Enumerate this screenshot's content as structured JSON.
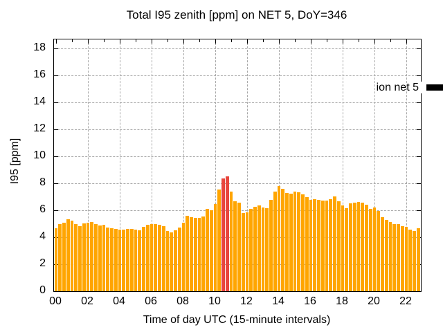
{
  "chart_data": {
    "type": "bar",
    "title": "Total I95 zenith [ppm] on NET 5, DoY=346",
    "xlabel": "Time of day UTC (15-minute intervals)",
    "ylabel": "I95 [ppm]",
    "legend": {
      "label": "ion net 5",
      "swatch_color": "#000000"
    },
    "grid": true,
    "x_start": "00:00",
    "x_step_minutes": 15,
    "xlim_hours": [
      -0.13,
      22.9
    ],
    "ylim": [
      0,
      18.67
    ],
    "yticks": [
      0,
      2,
      4,
      6,
      8,
      10,
      12,
      14,
      16,
      18
    ],
    "xtick_hours": [
      0,
      2,
      4,
      6,
      8,
      10,
      12,
      14,
      16,
      18,
      20,
      22
    ],
    "xtick_labels": [
      "00",
      "02",
      "04",
      "06",
      "08",
      "10",
      "12",
      "14",
      "16",
      "18",
      "20",
      "22"
    ],
    "bar_color": "#ffa500",
    "highlight": {
      "indices": [
        42,
        43
      ],
      "color": "#e8463d"
    },
    "values": [
      4.65,
      4.95,
      5.1,
      5.35,
      5.25,
      4.95,
      4.8,
      5.05,
      5.1,
      5.15,
      4.95,
      4.85,
      4.9,
      4.7,
      4.65,
      4.6,
      4.55,
      4.55,
      4.6,
      4.6,
      4.55,
      4.5,
      4.75,
      4.9,
      4.95,
      4.95,
      4.9,
      4.8,
      4.45,
      4.35,
      4.5,
      4.7,
      5.1,
      5.6,
      5.5,
      5.45,
      5.45,
      5.55,
      6.1,
      6.0,
      6.45,
      7.55,
      8.35,
      8.5,
      7.4,
      6.65,
      6.55,
      5.8,
      5.85,
      6.1,
      6.25,
      6.35,
      6.2,
      6.15,
      6.75,
      7.4,
      7.8,
      7.6,
      7.3,
      7.25,
      7.4,
      7.35,
      7.2,
      6.95,
      6.75,
      6.8,
      6.75,
      6.7,
      6.7,
      6.8,
      7.05,
      6.65,
      6.35,
      6.15,
      6.5,
      6.55,
      6.6,
      6.55,
      6.4,
      6.1,
      6.2,
      5.95,
      5.5,
      5.3,
      5.15,
      5.0,
      5.0,
      4.8,
      4.75,
      4.55,
      4.45,
      4.65
    ]
  }
}
